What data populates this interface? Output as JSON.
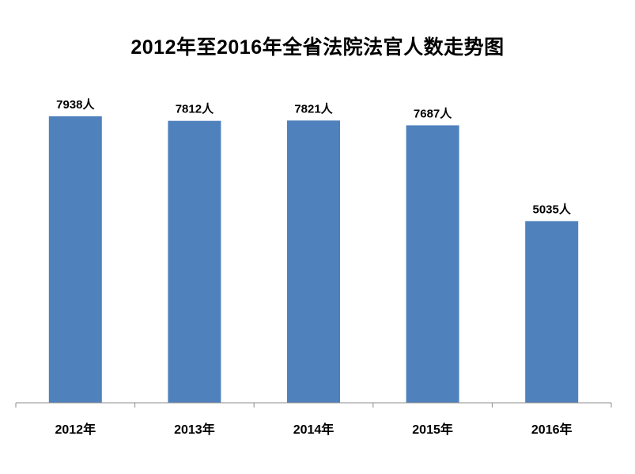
{
  "chart_data": {
    "type": "bar",
    "title": "2012年至2016年全省法院法官人数走势图",
    "categories": [
      "2012年",
      "2013年",
      "2014年",
      "2015年",
      "2016年"
    ],
    "values": [
      7938,
      7812,
      7821,
      7687,
      5035
    ],
    "data_labels": [
      "7938人",
      "7812人",
      "7821人",
      "7687人",
      "5035人"
    ],
    "xlabel": "",
    "ylabel": "",
    "ylim": [
      0,
      7938
    ],
    "grid": false,
    "legend": "none",
    "colors": {
      "bar": "#4f81bd",
      "axis": "#8c8c8c"
    }
  }
}
